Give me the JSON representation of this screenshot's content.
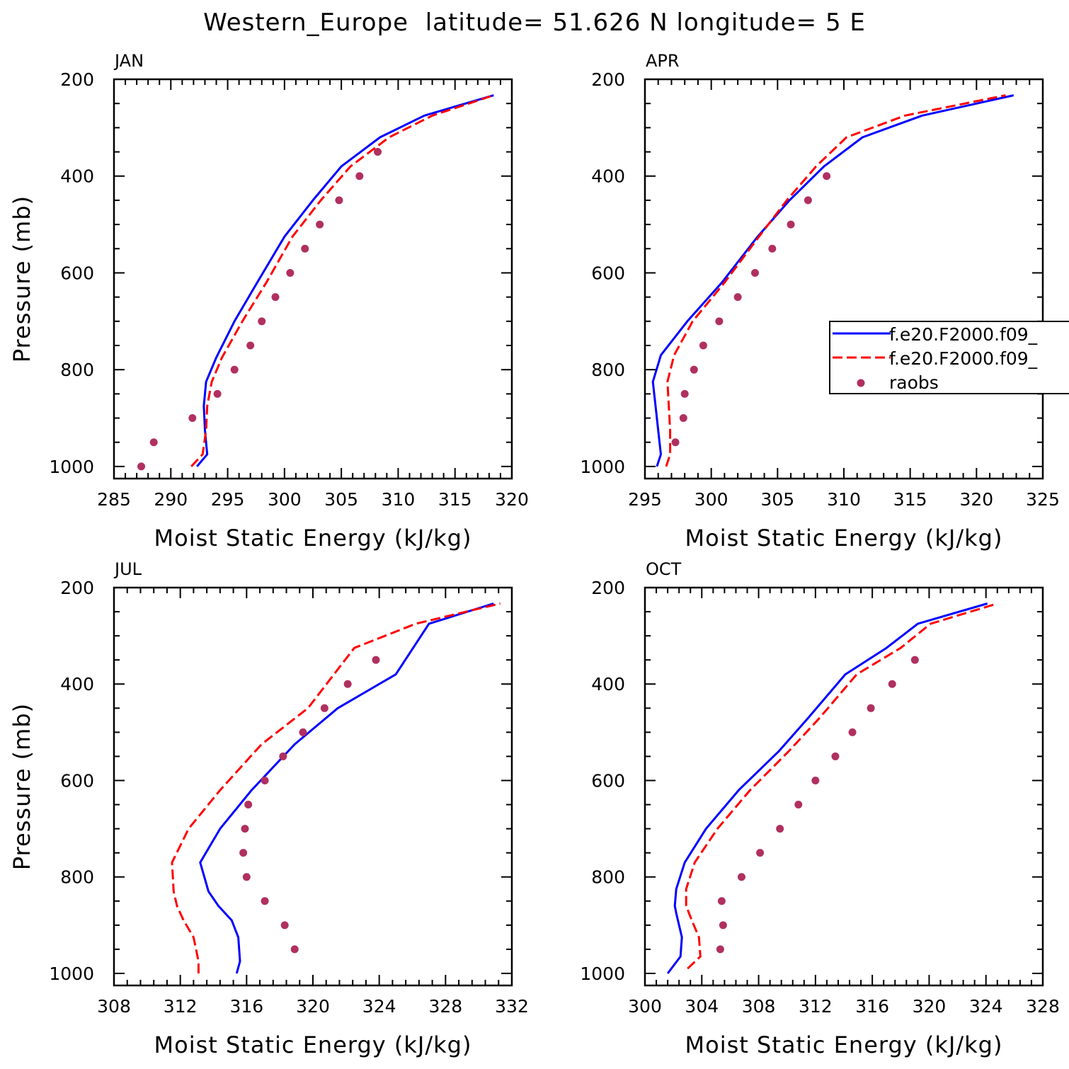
{
  "title": "Western_Europe  latitude= 51.626 N longitude= 5 E",
  "chart_data": [
    {
      "type": "line",
      "panel": "JAN",
      "xlabel": "Moist Static Energy (kJ/kg)",
      "ylabel": "Pressure (mb)",
      "xlim": [
        285,
        320
      ],
      "xticks": [
        285,
        290,
        295,
        300,
        305,
        310,
        315,
        320
      ],
      "ylim": [
        200,
        1025
      ],
      "yticks": [
        200,
        400,
        600,
        800,
        1000
      ],
      "y_reversed": true,
      "series": [
        {
          "name": "f.e20.F2000.f09_",
          "style": "solid",
          "color": "#0000ff",
          "x": [
            292.3,
            293.2,
            293.0,
            292.9,
            293.1,
            294.0,
            295.6,
            297.6,
            300.0,
            302.5,
            305.0,
            308.4,
            312.3,
            318.4
          ],
          "y": [
            1000,
            975,
            925,
            875,
            825,
            775,
            700,
            620,
            525,
            450,
            380,
            320,
            275,
            233
          ]
        },
        {
          "name": "f.e20.F2000.f09_",
          "style": "dashed",
          "color": "#ff0000",
          "x": [
            291.8,
            292.8,
            293.1,
            293.2,
            293.6,
            294.5,
            296.3,
            298.4,
            300.7,
            303.2,
            305.8,
            309.2,
            313.0,
            318.4
          ],
          "y": [
            1000,
            975,
            925,
            875,
            825,
            775,
            700,
            620,
            525,
            450,
            380,
            320,
            275,
            233
          ]
        },
        {
          "name": "raobs",
          "style": "points",
          "color": "#b03060",
          "x": [
            287.4,
            288.5,
            291.9,
            294.1,
            295.6,
            297.0,
            298.0,
            299.2,
            300.5,
            301.8,
            303.1,
            304.8,
            306.6,
            308.2
          ],
          "y": [
            1000,
            950,
            900,
            850,
            800,
            750,
            700,
            650,
            600,
            550,
            500,
            450,
            400,
            350
          ]
        }
      ]
    },
    {
      "type": "line",
      "panel": "APR",
      "xlabel": "Moist Static Energy (kJ/kg)",
      "ylabel": "",
      "xlim": [
        295,
        325
      ],
      "xticks": [
        295,
        300,
        305,
        310,
        315,
        320,
        325
      ],
      "ylim": [
        200,
        1025
      ],
      "yticks": [
        200,
        400,
        600,
        800,
        1000
      ],
      "y_reversed": true,
      "legend": "right",
      "series": [
        {
          "name": "f.e20.F2000.f09_",
          "style": "solid",
          "color": "#0000ff",
          "x": [
            295.9,
            296.2,
            296.0,
            295.8,
            295.6,
            296.2,
            298.2,
            300.8,
            303.5,
            305.9,
            308.5,
            311.4,
            315.9,
            322.8
          ],
          "y": [
            1000,
            975,
            925,
            875,
            825,
            770,
            700,
            620,
            525,
            450,
            380,
            320,
            275,
            233
          ]
        },
        {
          "name": "f.e20.F2000.f09_",
          "style": "dashed",
          "color": "#ff0000",
          "x": [
            296.6,
            296.9,
            296.9,
            296.8,
            296.7,
            297.2,
            298.6,
            301.0,
            303.6,
            305.7,
            307.9,
            310.2,
            314.6,
            322.2
          ],
          "y": [
            1000,
            975,
            925,
            875,
            825,
            770,
            700,
            620,
            525,
            450,
            380,
            320,
            275,
            233
          ]
        },
        {
          "name": "raobs",
          "style": "points",
          "color": "#b03060",
          "x": [
            297.3,
            297.9,
            298.0,
            298.7,
            299.4,
            300.6,
            302.0,
            303.3,
            304.6,
            306.0,
            307.3,
            308.7
          ],
          "y": [
            950,
            900,
            850,
            800,
            750,
            700,
            650,
            600,
            550,
            500,
            450,
            400
          ]
        }
      ]
    },
    {
      "type": "line",
      "panel": "JUL",
      "xlabel": "Moist Static Energy (kJ/kg)",
      "ylabel": "Pressure (mb)",
      "xlim": [
        308,
        332
      ],
      "xticks": [
        308,
        312,
        316,
        320,
        324,
        328,
        332
      ],
      "ylim": [
        200,
        1025
      ],
      "yticks": [
        200,
        400,
        600,
        800,
        1000
      ],
      "y_reversed": true,
      "series": [
        {
          "name": "f.e20.F2000.f09_",
          "style": "solid",
          "color": "#0000ff",
          "x": [
            315.4,
            315.6,
            315.5,
            315.1,
            314.3,
            313.7,
            313.2,
            314.4,
            316.3,
            318.9,
            321.5,
            325.0,
            327.0,
            330.9
          ],
          "y": [
            1000,
            975,
            925,
            890,
            860,
            830,
            770,
            700,
            620,
            525,
            450,
            380,
            275,
            233
          ]
        },
        {
          "name": "f.e20.F2000.f09_",
          "style": "dashed",
          "color": "#ff0000",
          "x": [
            313.1,
            313.1,
            312.8,
            312.2,
            311.8,
            311.6,
            311.5,
            312.5,
            314.4,
            316.9,
            319.7,
            322.5,
            326.2,
            331.3
          ],
          "y": [
            1000,
            975,
            925,
            890,
            860,
            830,
            770,
            700,
            620,
            525,
            450,
            325,
            275,
            233
          ]
        },
        {
          "name": "raobs",
          "style": "points",
          "color": "#b03060",
          "x": [
            318.9,
            318.3,
            317.1,
            316.0,
            315.8,
            315.9,
            316.1,
            317.1,
            318.2,
            319.4,
            320.7,
            322.1,
            323.8
          ],
          "y": [
            950,
            900,
            850,
            800,
            750,
            700,
            650,
            600,
            550,
            500,
            450,
            400,
            350
          ]
        }
      ]
    },
    {
      "type": "line",
      "panel": "OCT",
      "xlabel": "Moist Static Energy (kJ/kg)",
      "ylabel": "",
      "xlim": [
        300,
        328
      ],
      "xticks": [
        300,
        304,
        308,
        312,
        316,
        320,
        324,
        328
      ],
      "ylim": [
        200,
        1025
      ],
      "yticks": [
        200,
        400,
        600,
        800,
        1000
      ],
      "y_reversed": true,
      "series": [
        {
          "name": "f.e20.F2000.f09_",
          "style": "solid",
          "color": "#0000ff",
          "x": [
            301.6,
            302.5,
            302.6,
            302.2,
            302.1,
            302.2,
            302.8,
            304.3,
            306.6,
            309.4,
            311.5,
            314.1,
            317.0,
            319.2,
            324.1
          ],
          "y": [
            1000,
            965,
            925,
            875,
            860,
            825,
            770,
            700,
            620,
            540,
            470,
            380,
            325,
            275,
            233
          ]
        },
        {
          "name": "f.e20.F2000.f09_",
          "style": "dashed",
          "color": "#ff0000",
          "x": [
            303.0,
            303.9,
            303.8,
            303.3,
            302.9,
            302.9,
            303.5,
            305.1,
            307.4,
            310.1,
            312.3,
            314.9,
            318.0,
            320.1,
            324.8
          ],
          "y": [
            990,
            965,
            925,
            890,
            860,
            825,
            770,
            700,
            620,
            540,
            470,
            380,
            325,
            275,
            233
          ]
        },
        {
          "name": "raobs",
          "style": "points",
          "color": "#b03060",
          "x": [
            305.3,
            305.5,
            305.4,
            306.8,
            308.1,
            309.5,
            310.8,
            312.0,
            313.4,
            314.6,
            315.9,
            317.4,
            319.0
          ],
          "y": [
            950,
            900,
            850,
            800,
            750,
            700,
            650,
            600,
            550,
            500,
            450,
            400,
            350
          ]
        }
      ]
    }
  ],
  "legend": {
    "entries": [
      {
        "label": "f.e20.F2000.f09_",
        "style": "solid",
        "color": "#0000ff"
      },
      {
        "label": "f.e20.F2000.f09_",
        "style": "dashed",
        "color": "#ff0000"
      },
      {
        "label": "raobs",
        "style": "points",
        "color": "#b03060"
      }
    ]
  }
}
